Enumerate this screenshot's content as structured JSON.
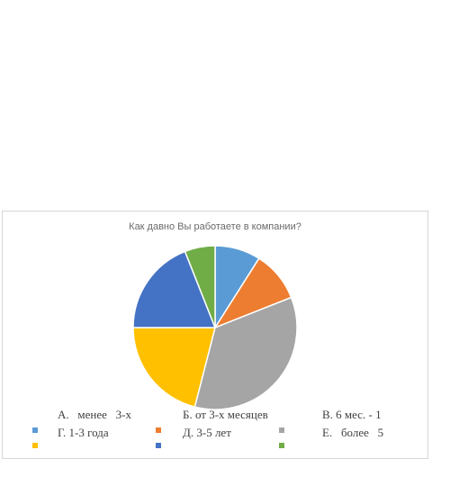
{
  "chart_data": {
    "type": "pie",
    "title": "Как давно Вы работаете в компании?",
    "slices": [
      {
        "label": "А.   менее   3-х",
        "value": 9,
        "color": "#5b9bd5"
      },
      {
        "label": "Б. от 3-х месяцев",
        "value": 10,
        "color": "#ed7d31"
      },
      {
        "label": "В. 6 мес. - 1",
        "value": 35,
        "color": "#a5a5a5"
      },
      {
        "label": "Г. 1-3 года",
        "value": 21,
        "color": "#ffc000"
      },
      {
        "label": "Д. 3-5 лет",
        "value": 19,
        "color": "#4472c4"
      },
      {
        "label": "Е.   более   5",
        "value": 6,
        "color": "#70ad47"
      }
    ],
    "legend_position": "bottom"
  }
}
